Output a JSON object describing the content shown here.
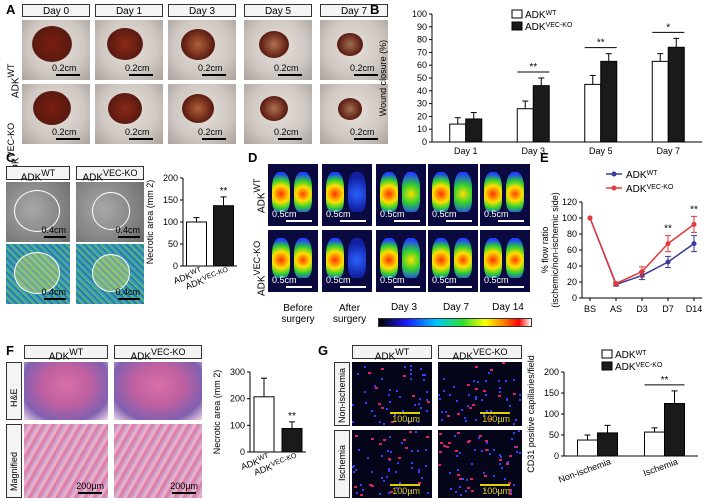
{
  "panels": {
    "A": "A",
    "B": "B",
    "C": "C",
    "D": "D",
    "E": "E",
    "F": "F",
    "G": "G"
  },
  "genotypes": {
    "wt_base": "ADK",
    "wt_sup": "WT",
    "ko_base": "ADK",
    "ko_sup": "VEC-KO"
  },
  "panel_a": {
    "days": [
      "Day 0",
      "Day 1",
      "Day 3",
      "Day 5",
      "Day 7"
    ],
    "scale_label": "0.2cm"
  },
  "panel_c": {
    "scale_label": "0.4cm"
  },
  "panel_d": {
    "scale_label": "0.5cm",
    "before_label": "Before surgery",
    "after_label": "After surgery",
    "time_labels": [
      "Day 3",
      "Day 7",
      "Day 14"
    ]
  },
  "panel_f": {
    "row_labels": [
      "H&E",
      "Magnified"
    ],
    "scale_label": "200µm"
  },
  "panel_g": {
    "row_labels": [
      "Non-ischemia",
      "Ischemia"
    ],
    "scale_label": "100µm"
  },
  "chart_data": [
    {
      "panel": "B",
      "type": "bar",
      "title": "",
      "xlabel": "",
      "ylabel": "Wound closure (%)",
      "categories": [
        "Day 1",
        "Day 3",
        "Day 5",
        "Day 7"
      ],
      "ylim": [
        0,
        100
      ],
      "yticks": [
        0,
        10,
        20,
        30,
        40,
        50,
        60,
        70,
        80,
        90,
        100
      ],
      "series": [
        {
          "name": "ADKWT",
          "color": "#ffffff",
          "values": [
            14,
            26,
            45,
            63
          ],
          "errors": [
            5,
            6,
            7,
            6
          ]
        },
        {
          "name": "ADKVEC-KO",
          "color": "#1a1a1a",
          "values": [
            18,
            44,
            63,
            74
          ],
          "errors": [
            5,
            6,
            6,
            7
          ]
        }
      ],
      "significance": [
        {
          "category": "Day 3",
          "label": "**"
        },
        {
          "category": "Day 5",
          "label": "**"
        },
        {
          "category": "Day 7",
          "label": "*"
        }
      ]
    },
    {
      "panel": "C",
      "type": "bar",
      "title": "",
      "ylabel": "Necrotic area (mm 2)",
      "categories": [
        "ADKWT",
        "ADKVEC-KO"
      ],
      "values": [
        100,
        137
      ],
      "errors": [
        10,
        20
      ],
      "colors": [
        "#ffffff",
        "#1a1a1a"
      ],
      "ylim": [
        0,
        200
      ],
      "yticks": [
        0,
        50,
        100,
        150,
        200
      ],
      "significance": [
        {
          "category": "ADKVEC-KO",
          "label": "**"
        }
      ]
    },
    {
      "panel": "E",
      "type": "line",
      "title": "",
      "ylabel": "% flow ratio (ischemic/non-ischemic side)",
      "categories": [
        "BS",
        "AS",
        "D3",
        "D7",
        "D14"
      ],
      "ylim": [
        0,
        120
      ],
      "yticks": [
        0,
        20,
        40,
        60,
        80,
        100,
        120
      ],
      "series": [
        {
          "name": "ADKWT",
          "color": "#3a3a9a",
          "values": [
            100,
            17,
            28,
            45,
            68
          ],
          "errors": [
            0,
            2,
            5,
            7,
            10
          ]
        },
        {
          "name": "ADKVEC-KO",
          "color": "#e23a3a",
          "values": [
            100,
            18,
            33,
            68,
            92
          ],
          "errors": [
            0,
            2,
            6,
            10,
            10
          ]
        }
      ],
      "significance": [
        {
          "category": "D7",
          "label": "**"
        },
        {
          "category": "D14",
          "label": "**"
        }
      ]
    },
    {
      "panel": "F",
      "type": "bar",
      "title": "",
      "ylabel": "Necrotic area (mm 2)",
      "categories": [
        "ADKWT",
        "ADKVEC-KO"
      ],
      "values": [
        207,
        88
      ],
      "errors": [
        70,
        25
      ],
      "colors": [
        "#ffffff",
        "#1a1a1a"
      ],
      "ylim": [
        0,
        300
      ],
      "yticks": [
        0,
        100,
        200,
        300
      ],
      "significance": [
        {
          "category": "ADKVEC-KO",
          "label": "**"
        }
      ]
    },
    {
      "panel": "G",
      "type": "bar",
      "title": "",
      "ylabel": "CD31 positive capillaries/field",
      "categories": [
        "Non-ischemia",
        "Ischemia"
      ],
      "ylim": [
        0,
        200
      ],
      "yticks": [
        0,
        50,
        100,
        150,
        200
      ],
      "series": [
        {
          "name": "ADKWT",
          "color": "#ffffff",
          "values": [
            38,
            57
          ],
          "errors": [
            12,
            10
          ]
        },
        {
          "name": "ADKVEC-KO",
          "color": "#1a1a1a",
          "values": [
            55,
            125
          ],
          "errors": [
            18,
            30
          ]
        }
      ],
      "significance": [
        {
          "category": "Ischemia",
          "label": "**"
        }
      ]
    }
  ]
}
